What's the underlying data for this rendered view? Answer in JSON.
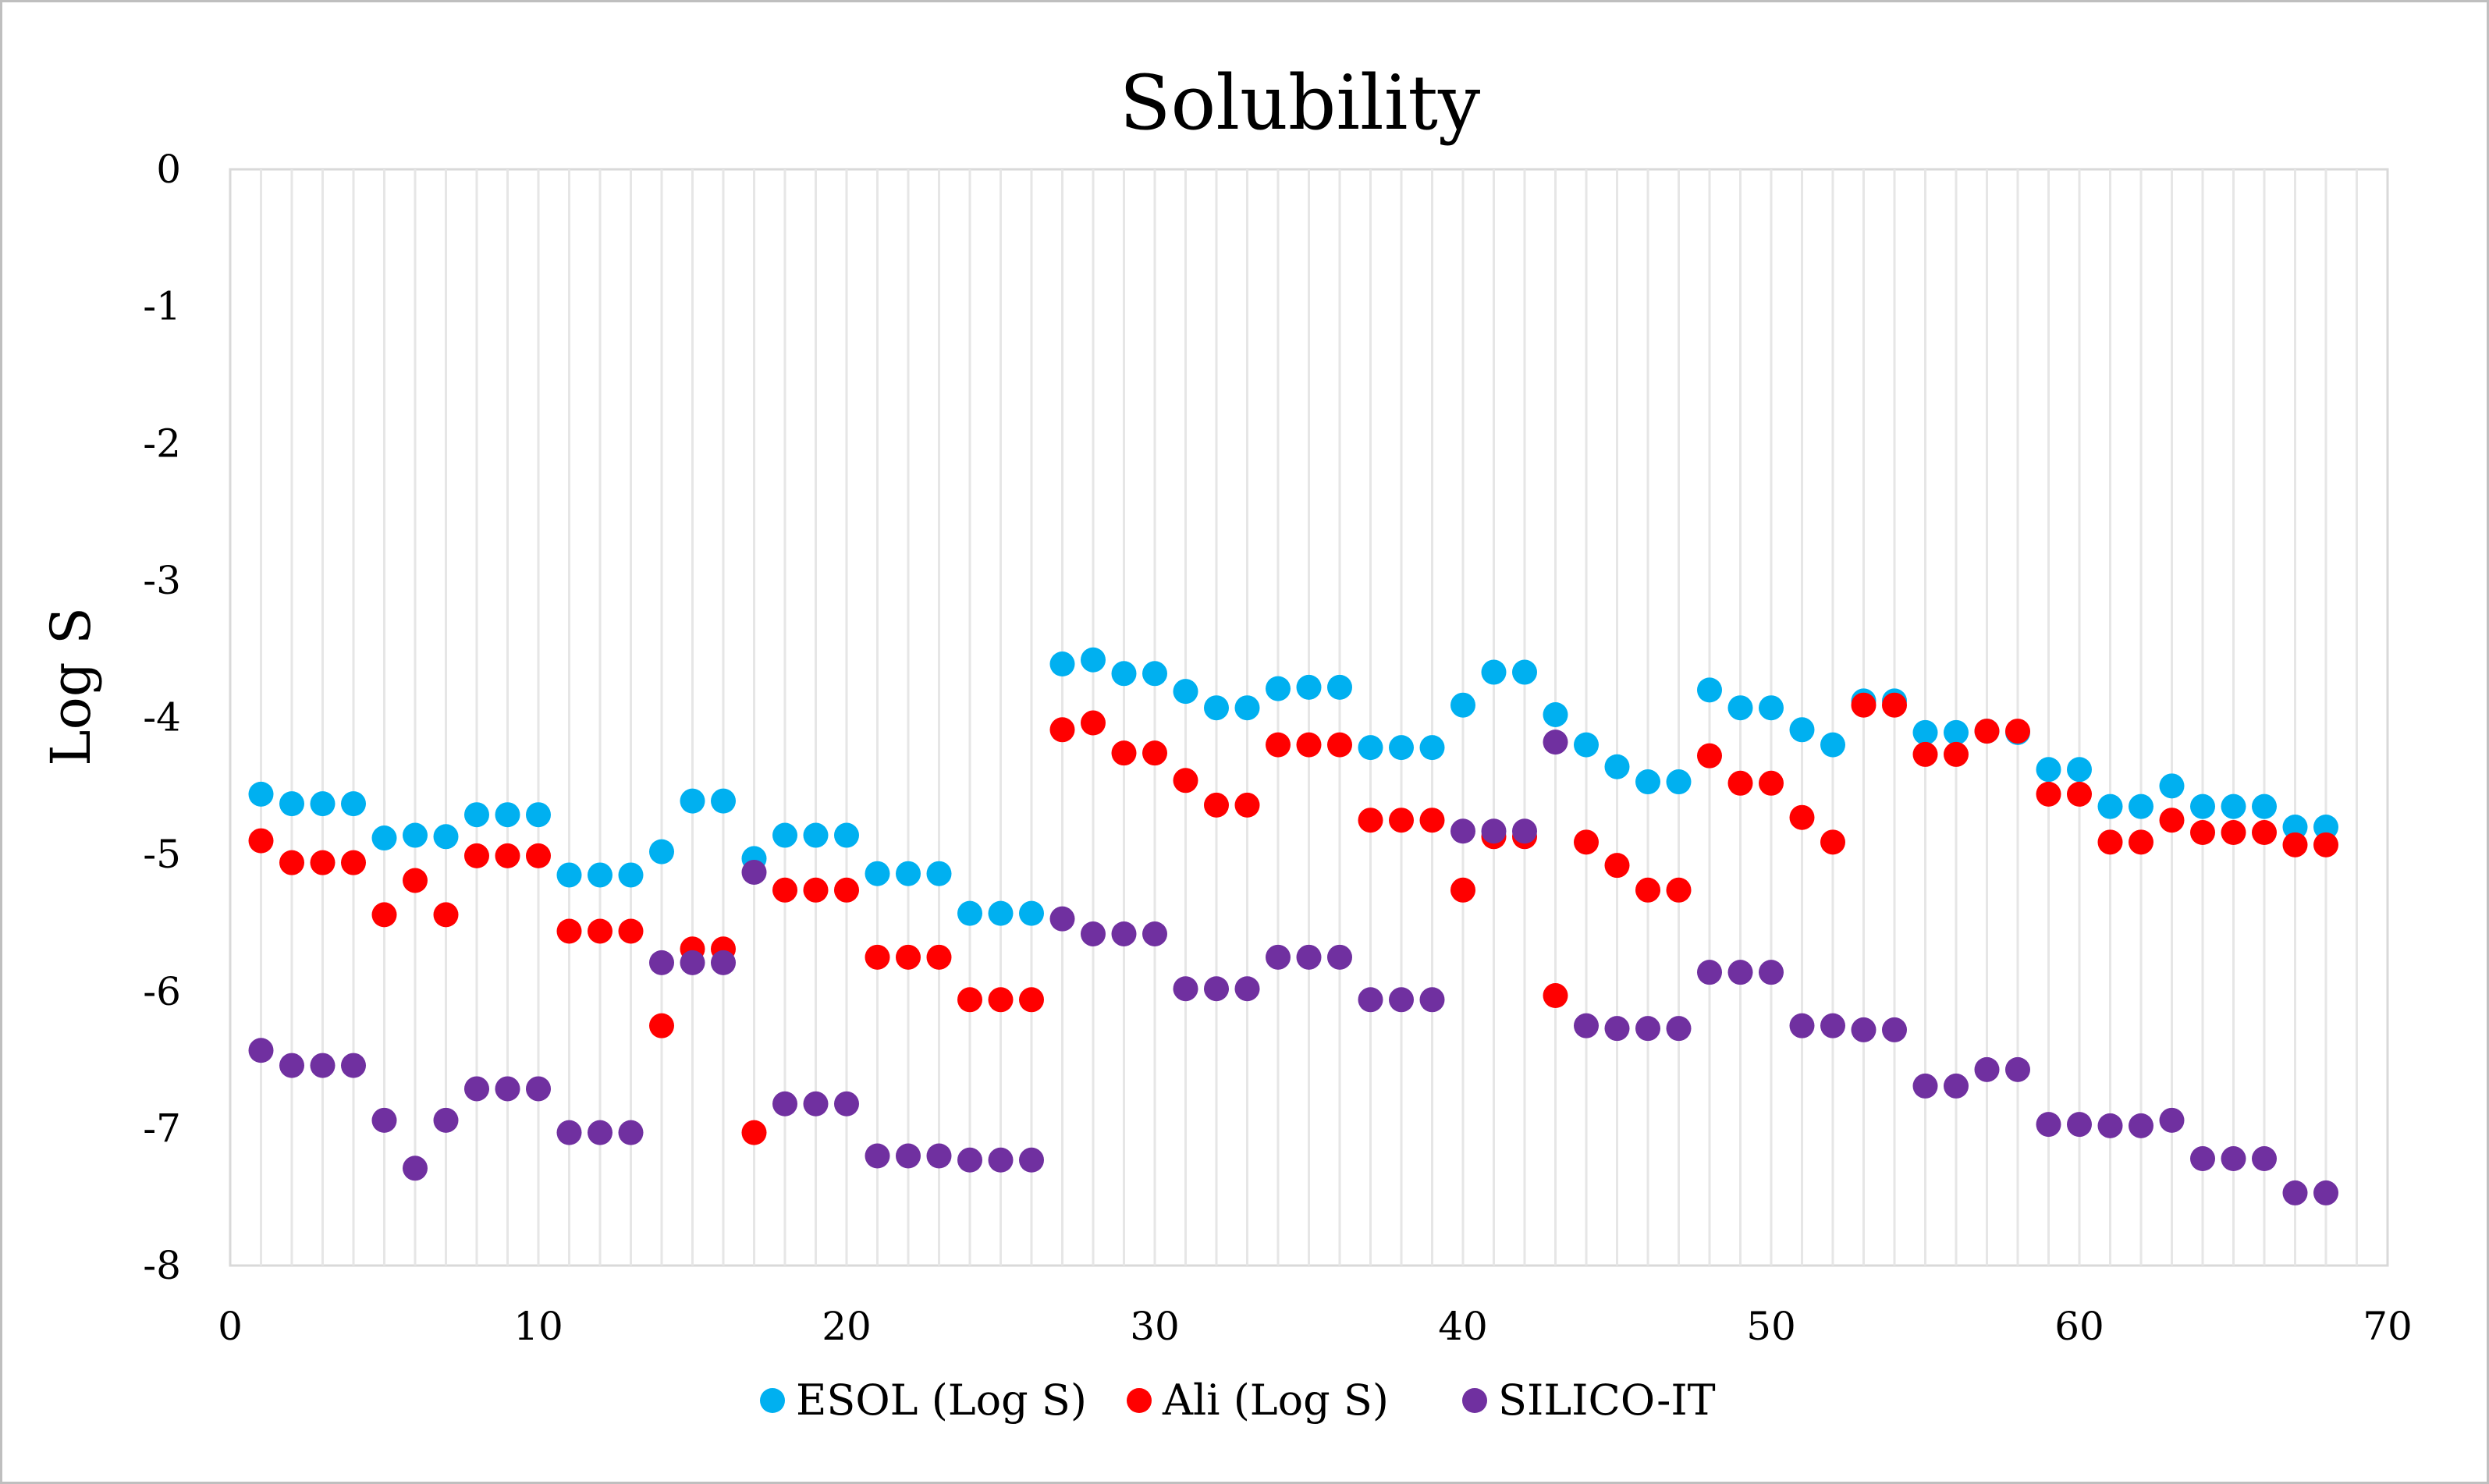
{
  "chart_data": {
    "type": "scatter",
    "title": "Solubility",
    "xlabel": "",
    "ylabel": "Log S",
    "xlim": [
      0,
      70
    ],
    "ylim": [
      -8,
      0
    ],
    "xticks": [
      0,
      10,
      20,
      30,
      40,
      50,
      60,
      70
    ],
    "yticks": [
      0,
      -1,
      -2,
      -3,
      -4,
      -5,
      -6,
      -7,
      -8
    ],
    "vertical_gridlines_every": 1,
    "legend_position": "bottom",
    "series": [
      {
        "name": "ESOL (Log S)",
        "color": "#00b0f0",
        "x": [
          1,
          2,
          3,
          4,
          5,
          6,
          7,
          8,
          9,
          10,
          11,
          12,
          13,
          14,
          15,
          16,
          17,
          18,
          19,
          20,
          21,
          22,
          23,
          24,
          25,
          26,
          27,
          28,
          29,
          30,
          31,
          32,
          33,
          34,
          35,
          36,
          37,
          38,
          39,
          40,
          41,
          42,
          43,
          44,
          45,
          46,
          47,
          48,
          49,
          50,
          51,
          52,
          53,
          54,
          55,
          56,
          57,
          58,
          59,
          60,
          61,
          62,
          63,
          64,
          65,
          66,
          67,
          68
        ],
        "y": [
          -4.56,
          -4.63,
          -4.63,
          -4.63,
          -4.88,
          -4.86,
          -4.87,
          -4.71,
          -4.71,
          -4.71,
          -5.15,
          -5.15,
          -5.15,
          -4.98,
          -4.61,
          -4.61,
          -5.03,
          -4.86,
          -4.86,
          -4.86,
          -5.14,
          -5.14,
          -5.14,
          -5.43,
          -5.43,
          -5.43,
          -3.61,
          -3.58,
          -3.68,
          -3.68,
          -3.81,
          -3.93,
          -3.93,
          -3.79,
          -3.78,
          -3.78,
          -4.22,
          -4.22,
          -4.22,
          -3.91,
          -3.67,
          -3.67,
          -3.98,
          -4.2,
          -4.36,
          -4.47,
          -4.47,
          -3.8,
          -3.93,
          -3.93,
          -4.09,
          -4.2,
          -3.88,
          -3.88,
          -4.11,
          -4.11,
          -4.1,
          -4.11,
          -4.38,
          -4.38,
          -4.65,
          -4.65,
          -4.5,
          -4.65,
          -4.65,
          -4.65,
          -4.8,
          -4.8
        ]
      },
      {
        "name": "Ali (Log S)",
        "color": "#ff0000",
        "x": [
          1,
          2,
          3,
          4,
          5,
          6,
          7,
          8,
          9,
          10,
          11,
          12,
          13,
          14,
          15,
          16,
          17,
          18,
          19,
          20,
          21,
          22,
          23,
          24,
          25,
          26,
          27,
          28,
          29,
          30,
          31,
          32,
          33,
          34,
          35,
          36,
          37,
          38,
          39,
          40,
          41,
          42,
          43,
          44,
          45,
          46,
          47,
          48,
          49,
          50,
          51,
          52,
          53,
          54,
          55,
          56,
          57,
          58,
          59,
          60,
          61,
          62,
          63,
          64,
          65,
          66,
          67,
          68
        ],
        "y": [
          -4.9,
          -5.06,
          -5.06,
          -5.06,
          -5.44,
          -5.19,
          -5.44,
          -5.01,
          -5.01,
          -5.01,
          -5.56,
          -5.56,
          -5.56,
          -6.25,
          -5.69,
          -5.69,
          -7.03,
          -5.26,
          -5.26,
          -5.26,
          -5.75,
          -5.75,
          -5.75,
          -6.06,
          -6.06,
          -6.06,
          -4.09,
          -4.04,
          -4.26,
          -4.26,
          -4.46,
          -4.64,
          -4.64,
          -4.2,
          -4.2,
          -4.2,
          -4.75,
          -4.75,
          -4.75,
          -5.26,
          -4.87,
          -4.87,
          -6.03,
          -4.91,
          -5.08,
          -5.26,
          -5.26,
          -4.28,
          -4.48,
          -4.48,
          -4.73,
          -4.91,
          -3.91,
          -3.91,
          -4.27,
          -4.27,
          -4.1,
          -4.1,
          -4.56,
          -4.56,
          -4.91,
          -4.91,
          -4.75,
          -4.84,
          -4.84,
          -4.84,
          -4.93,
          -4.93
        ]
      },
      {
        "name": "SILICO-IT",
        "color": "#7030a0",
        "x": [
          1,
          2,
          3,
          4,
          5,
          6,
          7,
          8,
          9,
          10,
          11,
          12,
          13,
          14,
          15,
          16,
          17,
          18,
          19,
          20,
          21,
          22,
          23,
          24,
          25,
          26,
          27,
          28,
          29,
          30,
          31,
          32,
          33,
          34,
          35,
          36,
          37,
          38,
          39,
          40,
          41,
          42,
          43,
          44,
          45,
          46,
          47,
          48,
          49,
          50,
          51,
          52,
          53,
          54,
          55,
          56,
          57,
          58,
          59,
          60,
          61,
          62,
          63,
          64,
          65,
          66,
          67,
          68
        ],
        "y": [
          -6.43,
          -6.54,
          -6.54,
          -6.54,
          -6.94,
          -7.29,
          -6.94,
          -6.71,
          -6.71,
          -6.71,
          -7.03,
          -7.03,
          -7.03,
          -5.79,
          -5.79,
          -5.79,
          -5.13,
          -6.82,
          -6.82,
          -6.82,
          -7.2,
          -7.2,
          -7.2,
          -7.23,
          -7.23,
          -7.23,
          -5.47,
          -5.58,
          -5.58,
          -5.58,
          -5.98,
          -5.98,
          -5.98,
          -5.75,
          -5.75,
          -5.75,
          -6.06,
          -6.06,
          -6.06,
          -4.83,
          -4.83,
          -4.83,
          -4.18,
          -6.25,
          -6.27,
          -6.27,
          -6.27,
          -5.86,
          -5.86,
          -5.86,
          -6.25,
          -6.25,
          -6.28,
          -6.28,
          -6.69,
          -6.69,
          -6.57,
          -6.57,
          -6.97,
          -6.97,
          -6.98,
          -6.98,
          -6.94,
          -7.22,
          -7.22,
          -7.22,
          -7.47,
          -7.47
        ]
      }
    ]
  }
}
